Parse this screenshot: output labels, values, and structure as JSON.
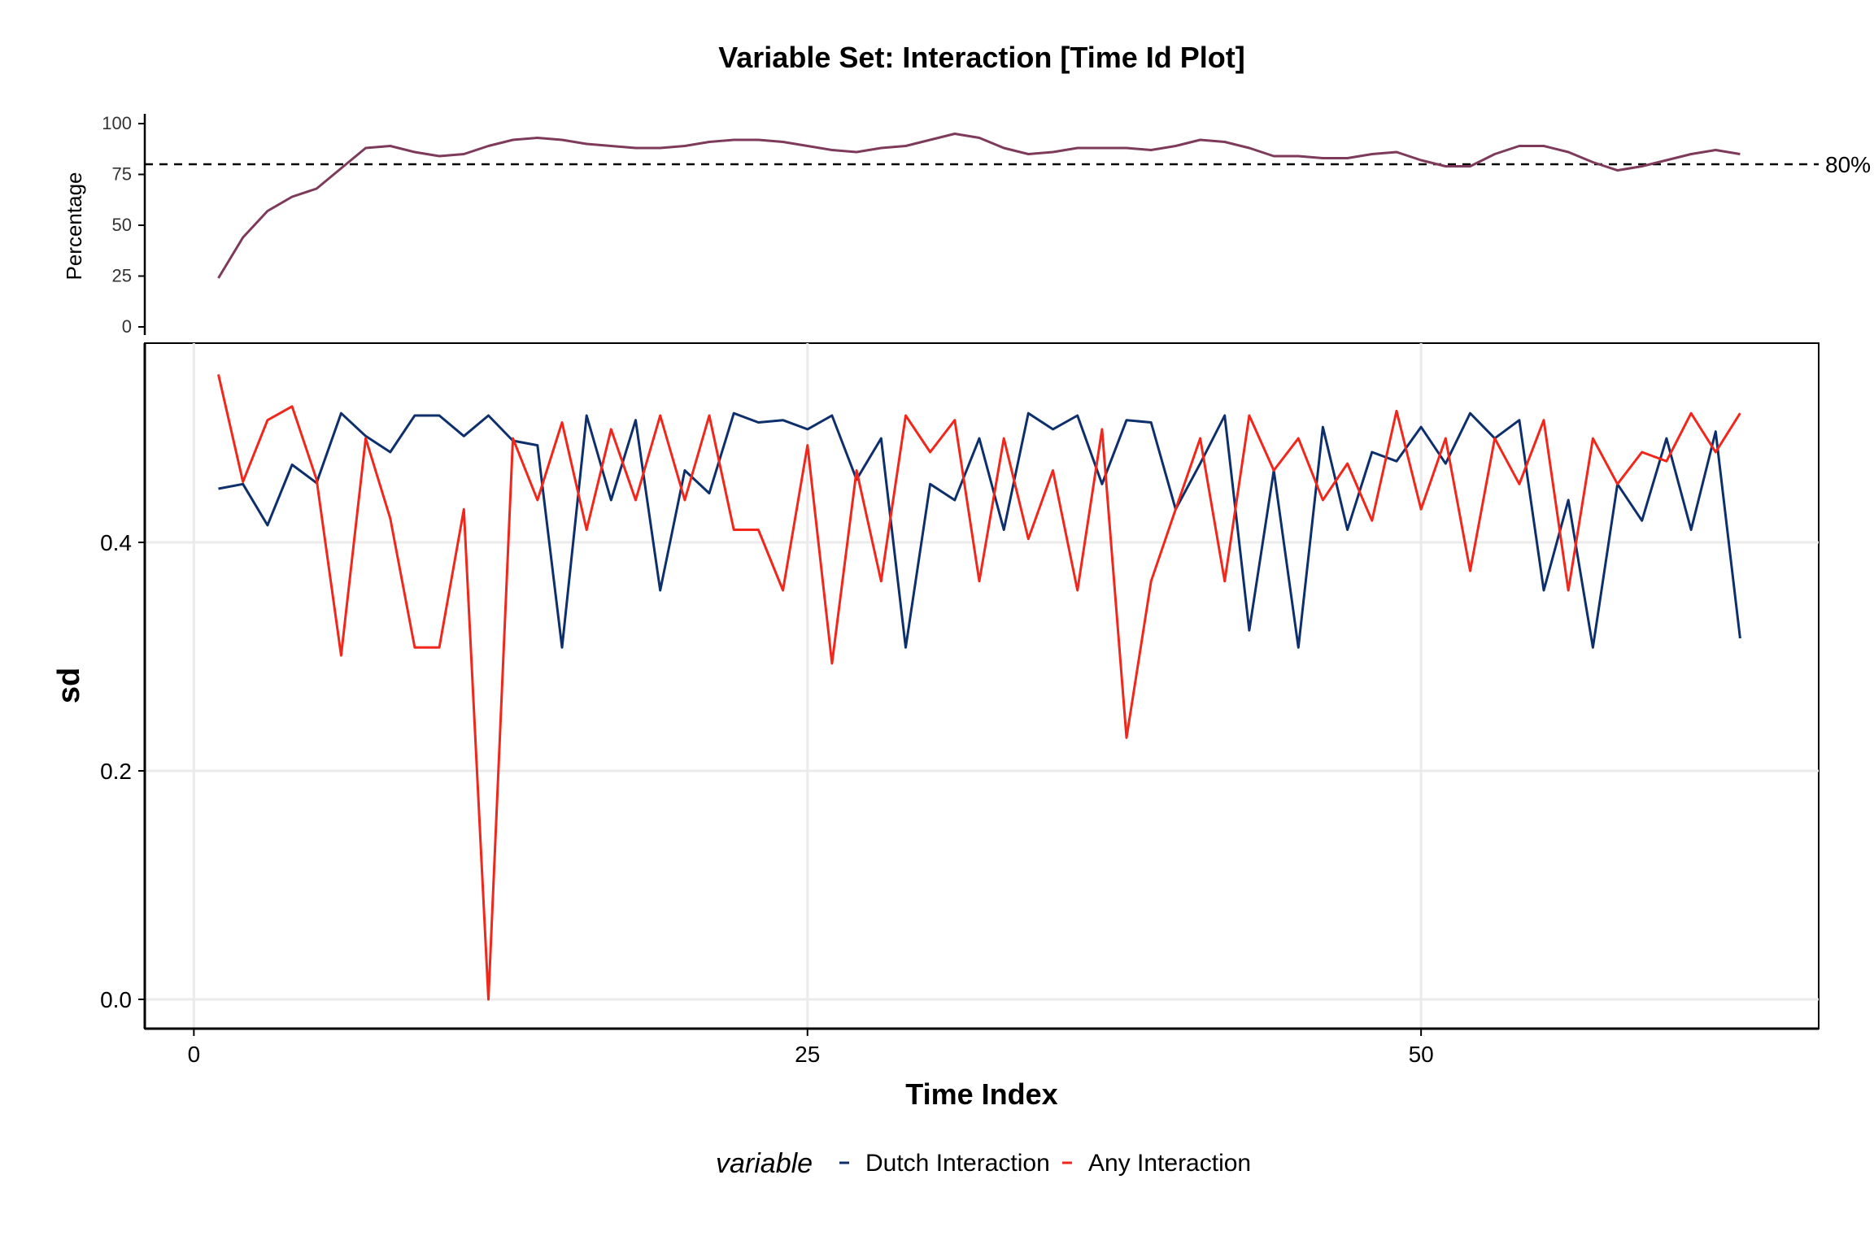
{
  "chart_data": [
    {
      "type": "line",
      "panel": "top",
      "title": "Variable Set: Interaction [Time Id Plot]",
      "ylabel": "Percentage",
      "ylim": [
        0,
        100
      ],
      "xlim": [
        -2,
        66.2
      ],
      "yticks": [
        0,
        25,
        50,
        75,
        100
      ],
      "reference_line": {
        "y": 80,
        "label": "80%",
        "style": "dashed"
      },
      "grid": false,
      "x": [
        1,
        2,
        3,
        4,
        5,
        6,
        7,
        8,
        9,
        10,
        11,
        12,
        13,
        14,
        15,
        16,
        17,
        18,
        19,
        20,
        21,
        22,
        23,
        24,
        25,
        26,
        27,
        28,
        29,
        30,
        31,
        32,
        33,
        34,
        35,
        36,
        37,
        38,
        39,
        40,
        41,
        42,
        43,
        44,
        45,
        46,
        47,
        48,
        49,
        50,
        51,
        52,
        53,
        54,
        55,
        56,
        57,
        58,
        59,
        60,
        61,
        62,
        63
      ],
      "series": [
        {
          "color": "#7e3a5a",
          "values": [
            24,
            44,
            57,
            64,
            68,
            78,
            88,
            89,
            86,
            84,
            85,
            89,
            92,
            93,
            92,
            90,
            89,
            88,
            88,
            89,
            91,
            92,
            92,
            91,
            89,
            87,
            86,
            88,
            89,
            92,
            95,
            93,
            88,
            85,
            86,
            88,
            88,
            88,
            87,
            89,
            92,
            91,
            88,
            84,
            84,
            83,
            83,
            85,
            86,
            82,
            79,
            79,
            85,
            89,
            89,
            86,
            81,
            77,
            79,
            82,
            85,
            87,
            85
          ]
        }
      ]
    },
    {
      "type": "line",
      "panel": "main",
      "xlabel": "Time Index",
      "ylabel": "sd",
      "xlim": [
        -2,
        66.2
      ],
      "ylim": [
        -0.027,
        0.574
      ],
      "xticks": [
        0,
        25,
        50
      ],
      "yticks": [
        "0.0",
        "0.2",
        "0.4"
      ],
      "grid": true,
      "legend": {
        "title": "variable",
        "position": "bottom"
      },
      "x": [
        1,
        2,
        3,
        4,
        5,
        6,
        7,
        8,
        9,
        10,
        11,
        12,
        13,
        14,
        15,
        16,
        17,
        18,
        19,
        20,
        21,
        22,
        23,
        24,
        25,
        26,
        27,
        28,
        29,
        30,
        31,
        32,
        33,
        34,
        35,
        36,
        37,
        38,
        39,
        40,
        41,
        42,
        43,
        44,
        45,
        46,
        47,
        48,
        49,
        50,
        51,
        52,
        53,
        54,
        55,
        56,
        57,
        58,
        59,
        60,
        61,
        62,
        63
      ],
      "series": [
        {
          "name": "Dutch Interaction",
          "color": "#0d2f6b",
          "values": [
            0.447,
            0.451,
            0.415,
            0.468,
            0.452,
            0.513,
            0.493,
            0.479,
            0.511,
            0.511,
            0.493,
            0.511,
            0.489,
            0.485,
            0.308,
            0.511,
            0.437,
            0.507,
            0.358,
            0.463,
            0.443,
            0.513,
            0.505,
            0.507,
            0.499,
            0.511,
            0.455,
            0.491,
            0.308,
            0.451,
            0.437,
            0.491,
            0.411,
            0.513,
            0.499,
            0.511,
            0.451,
            0.507,
            0.505,
            0.429,
            0.469,
            0.511,
            0.323,
            0.463,
            0.308,
            0.501,
            0.411,
            0.479,
            0.471,
            0.501,
            0.469,
            0.513,
            0.491,
            0.507,
            0.358,
            0.437,
            0.308,
            0.451,
            0.419,
            0.491,
            0.411,
            0.497,
            0.316
          ]
        },
        {
          "name": "Any Interaction",
          "color": "#f2261a",
          "values": [
            0.547,
            0.453,
            0.507,
            0.519,
            0.455,
            0.301,
            0.491,
            0.421,
            0.308,
            0.308,
            0.429,
            0.0,
            0.491,
            0.437,
            0.505,
            0.411,
            0.499,
            0.437,
            0.511,
            0.437,
            0.511,
            0.411,
            0.411,
            0.358,
            0.485,
            0.294,
            0.463,
            0.366,
            0.511,
            0.479,
            0.507,
            0.366,
            0.491,
            0.403,
            0.463,
            0.358,
            0.499,
            0.229,
            0.366,
            0.429,
            0.491,
            0.366,
            0.511,
            0.463,
            0.491,
            0.437,
            0.469,
            0.419,
            0.515,
            0.429,
            0.491,
            0.375,
            0.491,
            0.451,
            0.507,
            0.358,
            0.491,
            0.451,
            0.479,
            0.471,
            0.513,
            0.479,
            0.513
          ]
        }
      ]
    }
  ]
}
